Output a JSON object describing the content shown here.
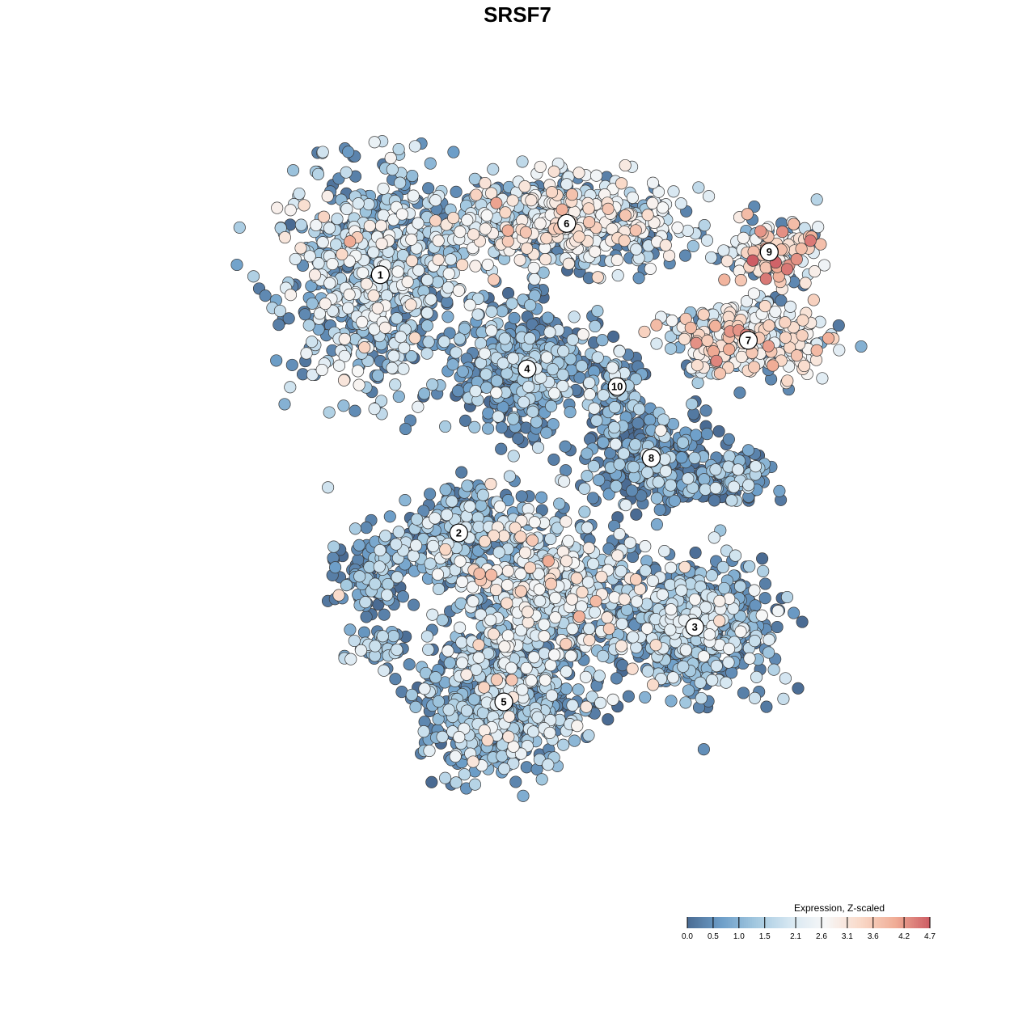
{
  "chart_data": {
    "type": "scatter",
    "title": "SRSF7",
    "xlabel": "",
    "ylabel": "",
    "grid": false,
    "axes_visible": false,
    "xlim": [
      0,
      100
    ],
    "ylim": [
      0,
      100
    ],
    "legend": {
      "title": "Expression, Z-scaled",
      "placement": "bottom-right",
      "range": [
        0.0,
        4.7
      ],
      "ticks": [
        0.0,
        0.5,
        1.0,
        1.5,
        2.1,
        2.6,
        3.1,
        3.6,
        4.2,
        4.7
      ],
      "tick_labels": [
        "0.0",
        "0.5",
        "1.0",
        "1.5",
        "2.1",
        "2.6",
        "3.1",
        "3.6",
        "4.2",
        "4.7"
      ],
      "colors": [
        "#4a6b93",
        "#6e9fc9",
        "#a4c9e0",
        "#d8e8f2",
        "#f7f7f7",
        "#f9d9c8",
        "#f0ad96",
        "#cd5c64"
      ]
    },
    "clusters": [
      {
        "label": "1",
        "x": 29.0,
        "y": 73.1,
        "sx": 7.5,
        "sy": 9.0,
        "n": 700,
        "mean_expr": 1.6
      },
      {
        "label": "2",
        "x": 39.1,
        "y": 42.4,
        "sx": 4.5,
        "sy": 4.0,
        "n": 260,
        "mean_expr": 0.9
      },
      {
        "label": "3",
        "x": 69.5,
        "y": 31.2,
        "sx": 6.5,
        "sy": 5.0,
        "n": 620,
        "mean_expr": 1.2
      },
      {
        "label": "4",
        "x": 47.9,
        "y": 61.9,
        "sx": 5.0,
        "sy": 5.0,
        "n": 480,
        "mean_expr": 0.8
      },
      {
        "label": "5",
        "x": 44.9,
        "y": 22.3,
        "sx": 6.5,
        "sy": 5.5,
        "n": 650,
        "mean_expr": 1.2
      },
      {
        "label": "6",
        "x": 53.0,
        "y": 79.2,
        "sx": 10.0,
        "sy": 3.5,
        "n": 620,
        "mean_expr": 2.2
      },
      {
        "label": "7",
        "x": 76.4,
        "y": 65.3,
        "sx": 7.0,
        "sy": 3.0,
        "n": 300,
        "mean_expr": 2.6
      },
      {
        "label": "8",
        "x": 63.9,
        "y": 51.3,
        "sx": 5.5,
        "sy": 4.0,
        "n": 300,
        "mean_expr": 0.6
      },
      {
        "label": "9",
        "x": 79.1,
        "y": 75.8,
        "sx": 4.0,
        "sy": 2.5,
        "n": 160,
        "mean_expr": 2.9
      },
      {
        "label": "10",
        "x": 59.5,
        "y": 59.8,
        "sx": 2.5,
        "sy": 3.5,
        "n": 90,
        "mean_expr": 0.8
      },
      {
        "label": "",
        "x": 50.0,
        "y": 36.0,
        "sx": 8.0,
        "sy": 6.0,
        "n": 560,
        "mean_expr": 1.9
      },
      {
        "label": "",
        "x": 28.7,
        "y": 28.6,
        "sx": 2.5,
        "sy": 1.5,
        "n": 40,
        "mean_expr": 1.2
      },
      {
        "label": "",
        "x": 74.0,
        "y": 49.0,
        "sx": 3.0,
        "sy": 2.0,
        "n": 120,
        "mean_expr": 0.6
      },
      {
        "label": "",
        "x": 28.0,
        "y": 37.5,
        "sx": 3.5,
        "sy": 3.0,
        "n": 120,
        "mean_expr": 0.8
      }
    ]
  }
}
